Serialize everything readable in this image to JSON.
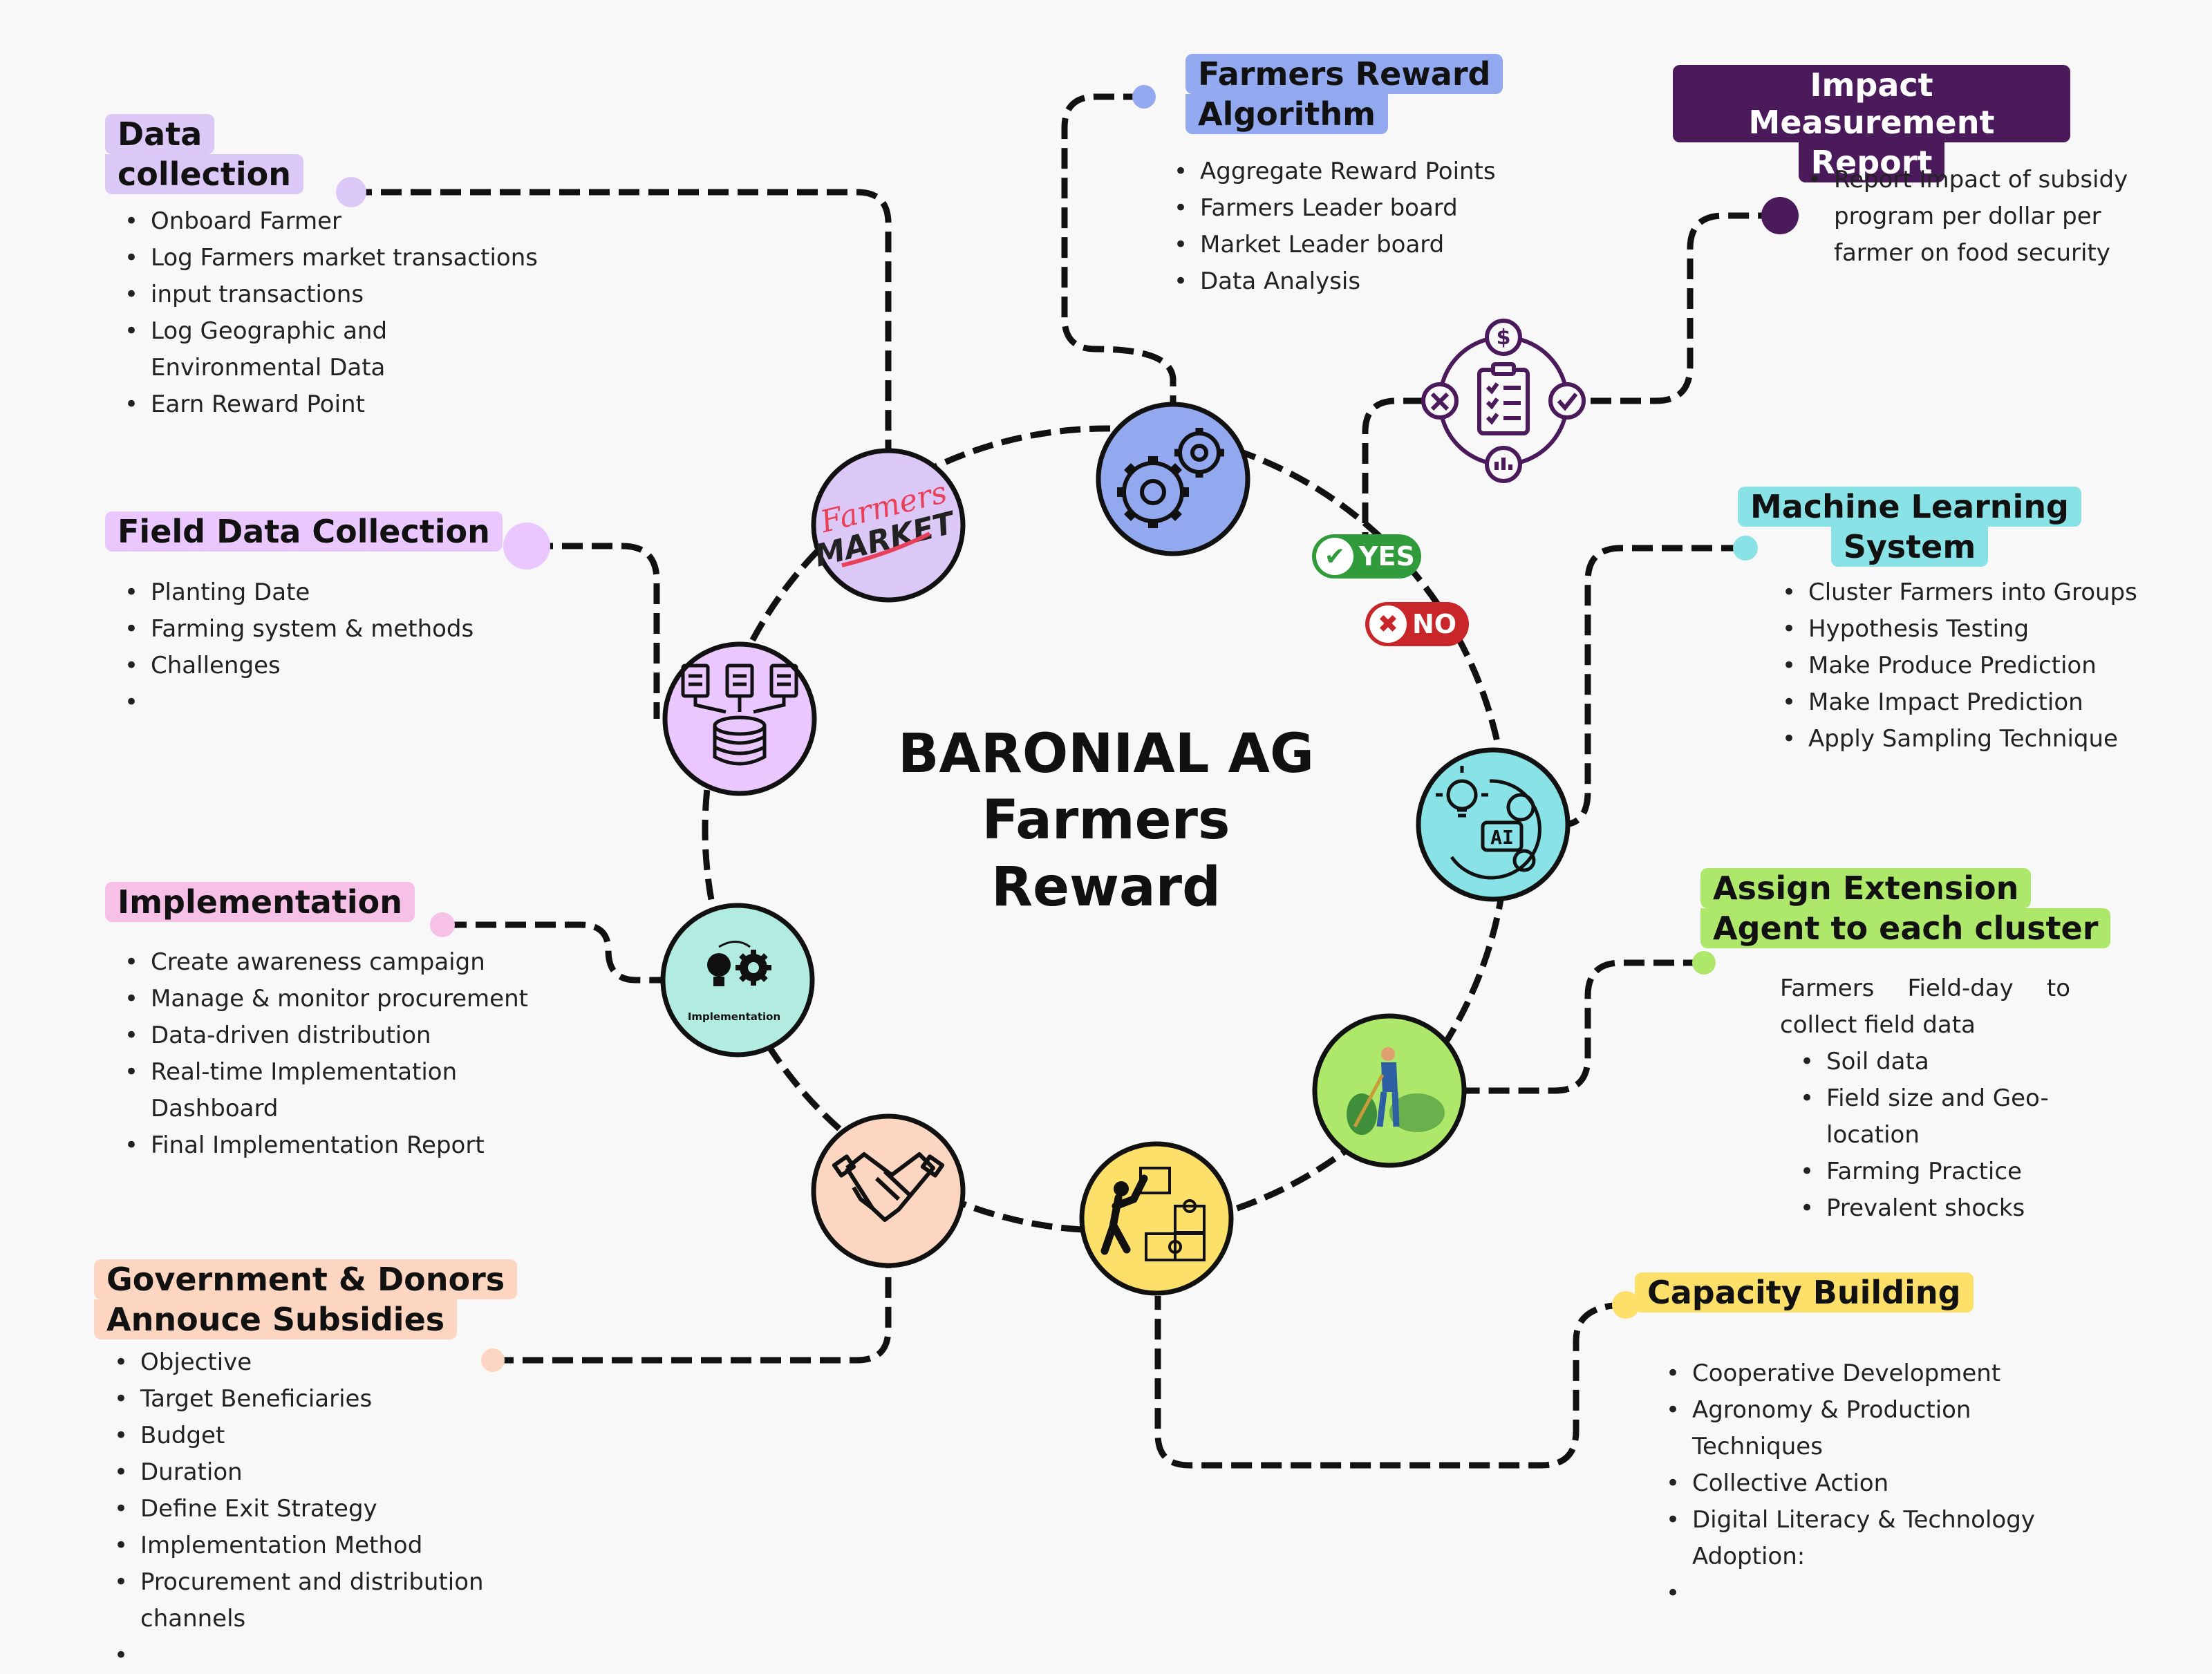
{
  "title": {
    "line1": "BARONIAL AG",
    "line2": "Farmers",
    "line3": "Reward"
  },
  "colors": {
    "lavender": "#dcc8f6",
    "purple_node": "#eac8ff",
    "blue": "#92a8ef",
    "dark_purple": "#4a1a5a",
    "cyan": "#88e2e6",
    "green": "#aee86a",
    "yellow": "#fde06a",
    "peach": "#fdd6c2",
    "pink": "#f7c0e6",
    "yes_green": "#2f9b3a",
    "no_red": "#c9262a"
  },
  "market_logo": {
    "line1": "Farmers",
    "line2": "MARKET"
  },
  "implementation_icon_label": "Implementation",
  "ai_icon_label": "AI",
  "decision": {
    "yes": "YES",
    "no": "NO"
  },
  "icons": [
    "market-logo",
    "database-icon",
    "gears-icon",
    "clipboard-icon",
    "ai-icon",
    "farmer-icon",
    "puzzle-icon",
    "handshake-icon",
    "bulb-gear-icon"
  ],
  "sections": {
    "data_collection": {
      "title": [
        "Data",
        "collection"
      ],
      "items": [
        "Onboard Farmer",
        "Log Farmers market transactions",
        "input transactions",
        "Log Geographic and Environmental Data",
        "Earn Reward Point"
      ]
    },
    "field_data": {
      "title": [
        "Field Data Collection"
      ],
      "items": [
        "Planting Date",
        "Farming system & methods",
        "Challenges",
        ""
      ]
    },
    "implementation": {
      "title": [
        "Implementation"
      ],
      "items": [
        "Create awareness campaign",
        "Manage & monitor procurement",
        "Data-driven distribution",
        "Real-time Implementation Dashboard",
        "Final Implementation Report"
      ]
    },
    "government": {
      "title": [
        "Government & Donors",
        "Annouce Subsidies"
      ],
      "items": [
        "Objective",
        "Target Beneficiaries",
        "Budget",
        "Duration",
        "Define Exit Strategy",
        "Implementation Method",
        "Procurement and distribution channels",
        ""
      ]
    },
    "reward_algorithm": {
      "title": [
        "Farmers Reward",
        "Algorithm"
      ],
      "items": [
        "Aggregate Reward Points",
        "Farmers Leader board",
        "Market Leader board",
        "Data Analysis"
      ]
    },
    "impact": {
      "title": [
        "Impact Measurement",
        "Report"
      ],
      "items": [
        "Report Impact of subsidy program per dollar per farmer on food security"
      ]
    },
    "ml": {
      "title": [
        "Machine Learning",
        "System"
      ],
      "items": [
        "Cluster Farmers into Groups",
        "Hypothesis Testing",
        "Make Produce Prediction",
        "Make Impact Prediction",
        "Apply Sampling Technique"
      ]
    },
    "extension": {
      "title": [
        "Assign Extension",
        "Agent to each cluster"
      ],
      "intro": "Farmers Field-day to collect field data",
      "items": [
        "Soil data",
        "Field size and Geo-location",
        "Farming Practice",
        "Prevalent shocks"
      ]
    },
    "capacity": {
      "title": [
        "Capacity Building"
      ],
      "items": [
        "Cooperative Development",
        "Agronomy & Production Techniques",
        "Collective Action",
        "Digital Literacy & Technology Adoption:",
        ""
      ]
    }
  }
}
